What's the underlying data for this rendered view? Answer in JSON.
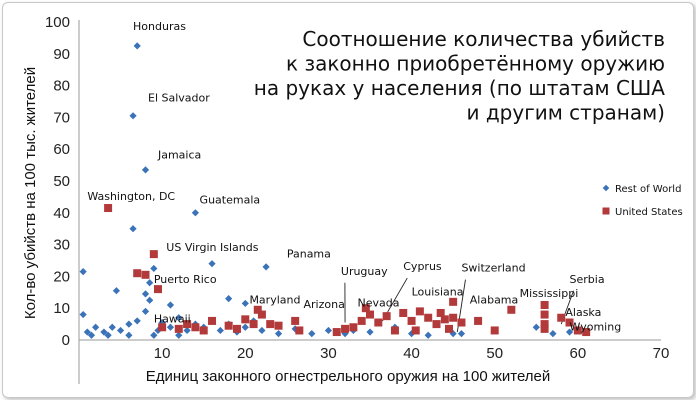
{
  "chart_data": {
    "type": "scatter",
    "title_lines": [
      "Соотношение количества убийств",
      "к законно приобретённому оружию",
      "на руках у населения (по штатам США",
      "и другим странам)"
    ],
    "xlabel": "Единиц законного огнестрельного оружия на 100 жителей",
    "ylabel": "Кол-во убийств на 100 тыс. жителей",
    "xlim": [
      0,
      70
    ],
    "ylim": [
      0,
      100
    ],
    "x_ticks": [
      "10",
      "20",
      "30",
      "40",
      "50",
      "60",
      "70"
    ],
    "y_ticks": [
      "0",
      "10",
      "20",
      "30",
      "40",
      "50",
      "60",
      "70",
      "80",
      "90",
      "100"
    ],
    "grid": false,
    "legend_position": "right",
    "colors": {
      "rest_of_world": "#3b73b9",
      "united_states": "#b23a3a"
    },
    "series": [
      {
        "name": "Rest of World",
        "marker": "diamond",
        "points": [
          [
            7,
            92.5
          ],
          [
            6.5,
            70.5
          ],
          [
            8,
            53.5
          ],
          [
            14,
            40
          ],
          [
            6.5,
            35
          ],
          [
            22.5,
            23
          ],
          [
            16,
            24
          ],
          [
            9,
            22.5
          ],
          [
            0.5,
            21.5
          ],
          [
            8.5,
            18
          ],
          [
            4.5,
            15.5
          ],
          [
            18,
            13
          ],
          [
            8,
            14.5
          ],
          [
            11,
            11
          ],
          [
            20,
            11.5
          ],
          [
            8.5,
            12.5
          ],
          [
            0.5,
            8
          ],
          [
            2,
            4
          ],
          [
            3,
            2.5
          ],
          [
            4,
            4
          ],
          [
            5,
            3
          ],
          [
            6,
            5
          ],
          [
            7,
            6
          ],
          [
            8,
            9
          ],
          [
            9.5,
            3
          ],
          [
            10,
            5.5
          ],
          [
            11,
            4
          ],
          [
            12,
            7
          ],
          [
            13,
            3
          ],
          [
            14,
            5
          ],
          [
            15,
            4
          ],
          [
            16,
            6
          ],
          [
            17,
            3
          ],
          [
            18,
            5
          ],
          [
            19,
            2.5
          ],
          [
            20,
            4
          ],
          [
            21,
            6
          ],
          [
            22,
            3
          ],
          [
            24,
            2
          ],
          [
            26,
            3.5
          ],
          [
            28,
            2
          ],
          [
            30,
            3
          ],
          [
            32,
            2
          ],
          [
            33,
            3
          ],
          [
            35,
            2.5
          ],
          [
            38,
            4
          ],
          [
            40,
            2
          ],
          [
            42,
            1.5
          ],
          [
            45,
            2
          ],
          [
            46,
            2
          ],
          [
            55,
            4
          ],
          [
            57,
            2
          ],
          [
            59,
            2.5
          ],
          [
            1,
            2.5
          ],
          [
            1.5,
            1.5
          ],
          [
            3.5,
            1.5
          ],
          [
            6,
            1.5
          ],
          [
            9,
            1.5
          ],
          [
            12,
            1.5
          ]
        ]
      },
      {
        "name": "United States",
        "marker": "square",
        "points": [
          [
            3.5,
            41.5
          ],
          [
            9,
            27
          ],
          [
            7,
            21
          ],
          [
            8,
            20.5
          ],
          [
            9.5,
            16
          ],
          [
            10,
            4
          ],
          [
            12,
            3.5
          ],
          [
            13,
            5
          ],
          [
            14,
            4
          ],
          [
            15,
            3
          ],
          [
            16,
            6
          ],
          [
            18,
            4.5
          ],
          [
            19,
            3.5
          ],
          [
            20,
            6.5
          ],
          [
            21,
            5
          ],
          [
            21.5,
            9.5
          ],
          [
            22,
            8
          ],
          [
            23,
            5
          ],
          [
            24,
            4.5
          ],
          [
            26,
            6
          ],
          [
            26.5,
            3
          ],
          [
            31,
            2.5
          ],
          [
            32,
            3.5
          ],
          [
            33,
            4
          ],
          [
            34,
            6
          ],
          [
            34.5,
            10
          ],
          [
            35,
            8
          ],
          [
            36,
            5.5
          ],
          [
            37,
            7.5
          ],
          [
            38,
            3
          ],
          [
            39,
            8.5
          ],
          [
            40,
            6
          ],
          [
            40.5,
            3
          ],
          [
            41,
            9
          ],
          [
            42,
            7
          ],
          [
            43,
            5
          ],
          [
            43.5,
            8.5
          ],
          [
            44,
            6.5
          ],
          [
            44.5,
            3.5
          ],
          [
            45,
            7
          ],
          [
            45,
            12
          ],
          [
            46,
            5.5
          ],
          [
            48,
            6
          ],
          [
            50,
            3
          ],
          [
            52,
            9.5
          ],
          [
            56,
            11
          ],
          [
            56,
            8
          ],
          [
            56,
            5
          ],
          [
            56,
            3.5
          ],
          [
            58,
            7
          ],
          [
            59,
            5.5
          ],
          [
            60,
            3
          ],
          [
            61,
            2.5
          ]
        ]
      }
    ],
    "annotations": [
      {
        "text": "Honduras",
        "x": 6.5,
        "y": 97.5,
        "pointer": null
      },
      {
        "text": "El Salvador",
        "x": 8.3,
        "y": 75,
        "pointer": null
      },
      {
        "text": "Jamaica",
        "x": 9.5,
        "y": 57,
        "pointer": null
      },
      {
        "text": "Washington, DC",
        "x": 1,
        "y": 44,
        "pointer": null
      },
      {
        "text": "Guatemala",
        "x": 14.5,
        "y": 43,
        "pointer": null
      },
      {
        "text": "US Virgin Islands",
        "x": 10.5,
        "y": 28,
        "pointer": null
      },
      {
        "text": "Panama",
        "x": 25,
        "y": 26,
        "pointer": null
      },
      {
        "text": "Puerto Rico",
        "x": 9,
        "y": 18,
        "pointer": null
      },
      {
        "text": "Hawaii",
        "x": 9,
        "y": 5.5,
        "pointer": null
      },
      {
        "text": "Maryland",
        "x": 20.5,
        "y": 11.5,
        "pointer": null
      },
      {
        "text": "Uruguay",
        "x": 31.5,
        "y": 20.5,
        "pointer": [
          32,
          5.5
        ]
      },
      {
        "text": "Arizona",
        "x": 27,
        "y": 10,
        "pointer": null
      },
      {
        "text": "Nevada",
        "x": 33.5,
        "y": 10.5,
        "pointer": null
      },
      {
        "text": "Cyprus",
        "x": 39,
        "y": 22,
        "pointer": [
          36.5,
          6
        ]
      },
      {
        "text": "Louisiana",
        "x": 40,
        "y": 14,
        "pointer": null
      },
      {
        "text": "Switzerland",
        "x": 46,
        "y": 21.5,
        "pointer": [
          45.5,
          2.5
        ]
      },
      {
        "text": "Alabama",
        "x": 47,
        "y": 11.5,
        "pointer": null
      },
      {
        "text": "Mississippi",
        "x": 53,
        "y": 13.5,
        "pointer": null
      },
      {
        "text": "Serbia",
        "x": 59,
        "y": 18,
        "pointer": [
          58,
          5
        ]
      },
      {
        "text": "Alaska",
        "x": 58.5,
        "y": 7.5,
        "pointer": null
      },
      {
        "text": "Wyoming",
        "x": 59,
        "y": 3,
        "pointer": null
      }
    ]
  }
}
